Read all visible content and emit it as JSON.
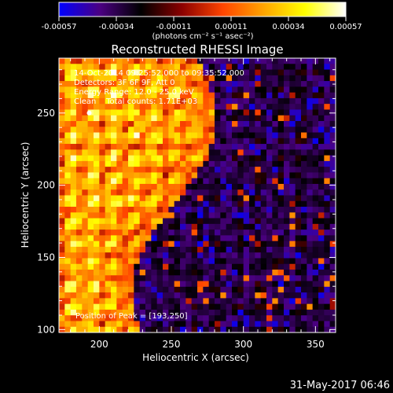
{
  "colorbar": {
    "tick_labels": [
      "-0.00057",
      "-0.00034",
      "-0.00011",
      "0.00011",
      "0.00034",
      "0.00057"
    ],
    "unit_label": "(photons cm⁻² s⁻¹ asec⁻²)",
    "stops": [
      "#0000ff",
      "#4b0082",
      "#000000",
      "#8b0000",
      "#ff4500",
      "#ffa500",
      "#ffff00",
      "#ffffff"
    ]
  },
  "chart_data": {
    "type": "heatmap",
    "title": "Reconstructed RHESSI Image",
    "xlabel": "Heliocentric X (arcsec)",
    "ylabel": "Heliocentric Y (arcsec)",
    "xlim": [
      172,
      364
    ],
    "ylim": [
      98,
      288
    ],
    "x_ticks": [
      "200",
      "250",
      "300",
      "350"
    ],
    "y_ticks": [
      "100",
      "150",
      "200",
      "250"
    ],
    "x_tick_values": [
      200,
      250,
      300,
      350
    ],
    "y_tick_values": [
      100,
      150,
      200,
      250
    ],
    "value_range": [
      -0.00057,
      0.00057
    ],
    "peak": [
      193,
      250
    ],
    "annotations": [
      "14-Oct-2014 09:25:52.000 to 09:35:52.000",
      "Detectors: 3F 6F 9F, Att 0",
      "Energy Range: 12.0 - 25.0 keV",
      "Clean    Total counts: 1.71E+03"
    ],
    "peak_label": "Position of Peak = [193,250]"
  },
  "footer": {
    "date": "31-May-2017 06:46"
  }
}
